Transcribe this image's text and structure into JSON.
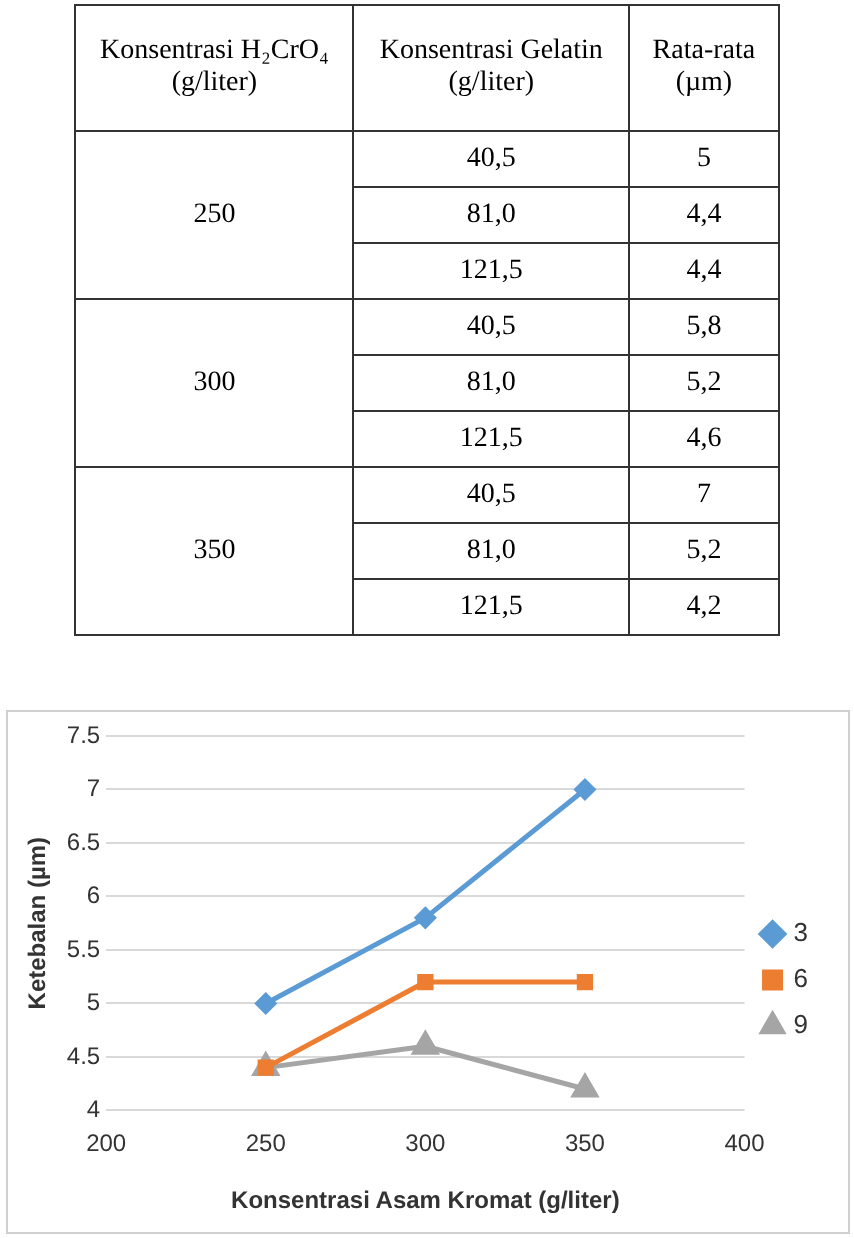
{
  "chart_data": [
    {
      "type": "other",
      "annotations": [
        "Konsentrasi H₂CrO₄ (g/liter)",
        "Konsentrasi Gelatin (g/liter)",
        "Rata-rata (µm)",
        "250",
        "40,5",
        "5",
        "81,0",
        "4,4",
        "121,5",
        "4,4",
        "300",
        "40,5",
        "5,8",
        "81,0",
        "5,2",
        "121,5",
        "4,6",
        "350",
        "40,5",
        "7",
        "81,0",
        "5,2",
        "121,5",
        "4,2"
      ]
    },
    {
      "type": "line",
      "xlabel": "Konsentrasi Asam Kromat (g/liter)",
      "ylabel": "Ketebalan (µm)",
      "x": [
        250,
        300,
        350
      ],
      "series": [
        {
          "name": "3",
          "color": "#5b9bd5",
          "marker": "diamond",
          "values": [
            5,
            5.8,
            7
          ]
        },
        {
          "name": "6",
          "color": "#ed7d31",
          "marker": "square",
          "values": [
            4.4,
            5.2,
            5.2
          ]
        },
        {
          "name": "9",
          "color": "#a5a5a5",
          "marker": "triangle",
          "values": [
            4.4,
            4.6,
            4.2
          ]
        }
      ],
      "xlim": [
        200,
        400
      ],
      "xticks": [
        200,
        250,
        300,
        350,
        400
      ],
      "ylim": [
        4,
        7.5
      ],
      "yticks": [
        4,
        4.5,
        5,
        5.5,
        6,
        6.5,
        7,
        7.5
      ],
      "grid": "y",
      "legend": "right"
    }
  ]
}
